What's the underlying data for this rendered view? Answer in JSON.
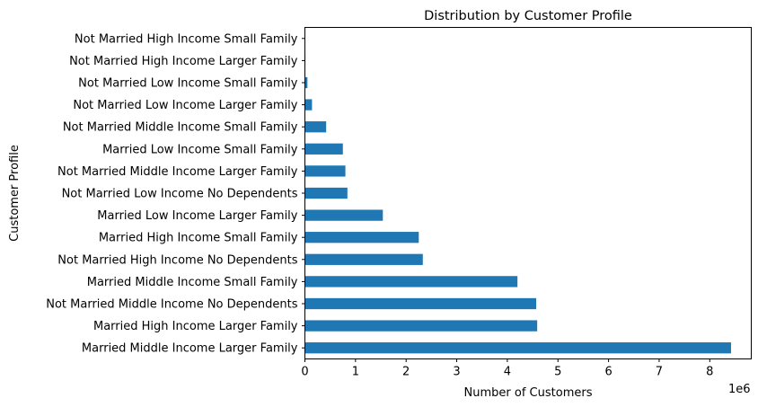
{
  "chart_data": {
    "type": "bar",
    "orientation": "horizontal",
    "title": "Distribution by Customer Profile",
    "xlabel": "Number of Customers",
    "ylabel": "Customer Profile",
    "x_offset_label": "1e6",
    "xlim": [
      0,
      8.82
    ],
    "x_ticks": [
      "0",
      "1",
      "2",
      "3",
      "4",
      "5",
      "6",
      "7",
      "8"
    ],
    "grid": false,
    "bar_color": "#1f77b4",
    "categories": [
      "Married Middle Income Larger Family",
      "Married High Income Larger Family",
      "Not Married Middle Income No Dependents",
      "Married Middle Income Small Family",
      "Not Married High Income No Dependents",
      "Married High Income Small Family",
      "Married Low Income Larger Family",
      "Not Married Low Income No Dependents",
      "Not Married Middle Income Larger Family",
      "Married Low Income Small Family",
      "Not Married Middle Income Small Family",
      "Not Married Low Income Larger Family",
      "Not Married Low Income Small Family",
      "Not Married High Income Larger Family",
      "Not Married High Income Small Family"
    ],
    "values": [
      8.42,
      4.59,
      4.57,
      4.2,
      2.33,
      2.25,
      1.54,
      0.84,
      0.8,
      0.75,
      0.42,
      0.14,
      0.05,
      0.01,
      0.005
    ]
  }
}
